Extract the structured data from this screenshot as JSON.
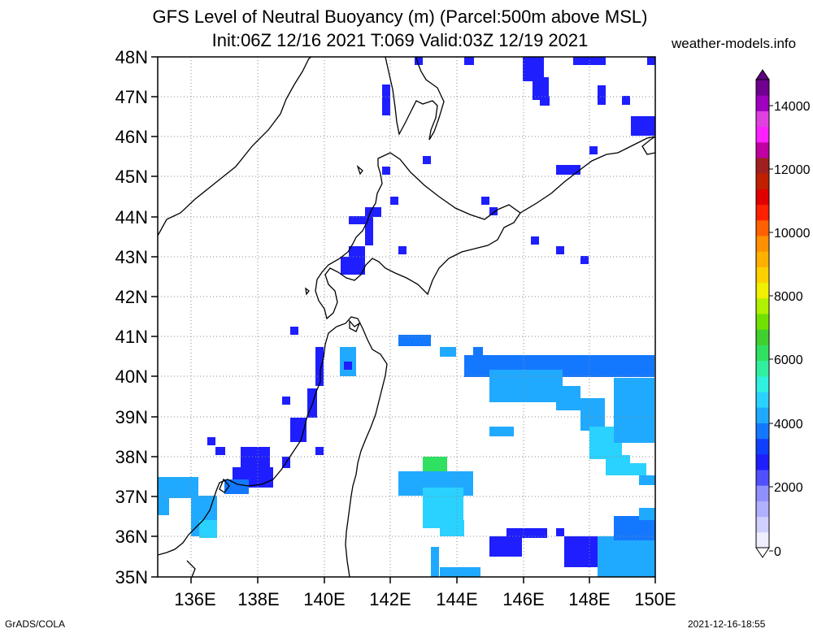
{
  "title_line1": "GFS Level of Neutral Buoyancy (m) (Parcel:500m above MSL)",
  "title_line2": "Init:06Z 12/16 2021 T:069 Valid:03Z 12/19 2021",
  "site": "weather-models.info",
  "credit_left": "GrADS/COLA",
  "credit_right": "2021-12-16-18:55",
  "lat_labels": [
    "48N",
    "47N",
    "46N",
    "45N",
    "44N",
    "43N",
    "42N",
    "41N",
    "40N",
    "39N",
    "38N",
    "37N",
    "36N",
    "35N"
  ],
  "lon_labels": [
    "136E",
    "138E",
    "140E",
    "142E",
    "144E",
    "146E",
    "148E",
    "150E"
  ],
  "colorbar": {
    "labels": [
      "0",
      "2000",
      "4000",
      "6000",
      "8000",
      "10000",
      "12000",
      "14000"
    ],
    "colors": [
      "#eeeeff",
      "#d0d0ff",
      "#b0b0ff",
      "#9090ff",
      "#5050ff",
      "#1e1eff",
      "#1040ff",
      "#1478ff",
      "#20aaff",
      "#2ad2ff",
      "#30f0e0",
      "#30f0a0",
      "#30e060",
      "#40d030",
      "#70e000",
      "#b0f000",
      "#f0f000",
      "#ffd000",
      "#ffb000",
      "#ff9000",
      "#ff6000",
      "#ff2000",
      "#e00000",
      "#c02000",
      "#a02020",
      "#c000a0",
      "#ff20ff",
      "#e040e0",
      "#a000c0",
      "#700090"
    ]
  },
  "legend_units": "Level of Neutral Buoyancy (m)"
}
